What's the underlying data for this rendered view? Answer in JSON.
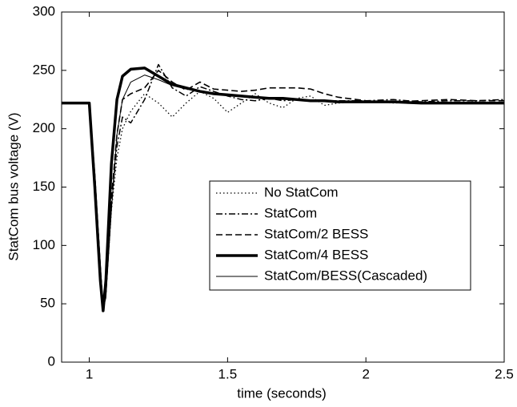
{
  "chart_data": {
    "type": "line",
    "xlabel": "time (seconds)",
    "ylabel": "StatCom bus voltage (V)",
    "x": [
      0.9,
      1.0,
      1.02,
      1.04,
      1.05,
      1.06,
      1.08,
      1.1,
      1.12,
      1.15,
      1.2,
      1.25,
      1.3,
      1.35,
      1.4,
      1.45,
      1.5,
      1.55,
      1.6,
      1.65,
      1.7,
      1.75,
      1.8,
      1.85,
      1.9,
      2.0,
      2.1,
      2.2,
      2.3,
      2.4,
      2.5
    ],
    "series": [
      {
        "name": "No StatCom",
        "color": "#000000",
        "dash": "dot",
        "width": 1.3,
        "values": [
          222,
          222,
          160,
          80,
          46,
          60,
          130,
          175,
          200,
          215,
          230,
          222,
          210,
          222,
          232,
          226,
          214,
          222,
          230,
          222,
          218,
          226,
          228,
          220,
          222,
          224,
          222,
          223,
          222,
          223,
          222
        ]
      },
      {
        "name": "StatCom",
        "color": "#000000",
        "dash": "dashdot",
        "width": 1.5,
        "values": [
          222,
          222,
          160,
          80,
          45,
          58,
          135,
          185,
          210,
          205,
          225,
          255,
          235,
          228,
          236,
          232,
          228,
          225,
          224,
          226,
          224,
          225,
          224,
          224,
          224,
          224,
          225,
          223,
          224,
          224,
          225
        ]
      },
      {
        "name": "StatCom/2 BESS",
        "color": "#000000",
        "dash": "dash",
        "width": 1.6,
        "values": [
          222,
          222,
          160,
          80,
          45,
          60,
          140,
          195,
          225,
          230,
          235,
          250,
          240,
          233,
          240,
          234,
          233,
          232,
          233,
          235,
          235,
          235,
          234,
          230,
          227,
          224,
          223,
          224,
          225,
          224,
          224
        ]
      },
      {
        "name": "StatCom/4 BESS",
        "color": "#000000",
        "dash": "solid",
        "width": 3.5,
        "values": [
          222,
          222,
          150,
          70,
          44,
          70,
          170,
          225,
          245,
          251,
          252,
          245,
          238,
          235,
          232,
          230,
          229,
          228,
          227,
          226,
          226,
          225,
          224,
          224,
          223,
          223,
          223,
          222,
          222,
          222,
          222
        ]
      },
      {
        "name": "StatCom/BESS(Cascaded)",
        "color": "#000000",
        "dash": "solid",
        "width": 1,
        "values": [
          222,
          222,
          160,
          85,
          46,
          55,
          130,
          195,
          225,
          240,
          246,
          242,
          237,
          234,
          232,
          230,
          229,
          228,
          227,
          226,
          225,
          225,
          224,
          224,
          223,
          223,
          223,
          222,
          222,
          222,
          222
        ]
      }
    ],
    "xlim": [
      0.9,
      2.5
    ],
    "xticks": [
      1,
      1.5,
      2,
      2.5
    ],
    "ylim": [
      0,
      300
    ],
    "yticks": [
      0,
      50,
      100,
      150,
      200,
      250,
      300
    ],
    "grid": false,
    "legend": "center-right"
  }
}
